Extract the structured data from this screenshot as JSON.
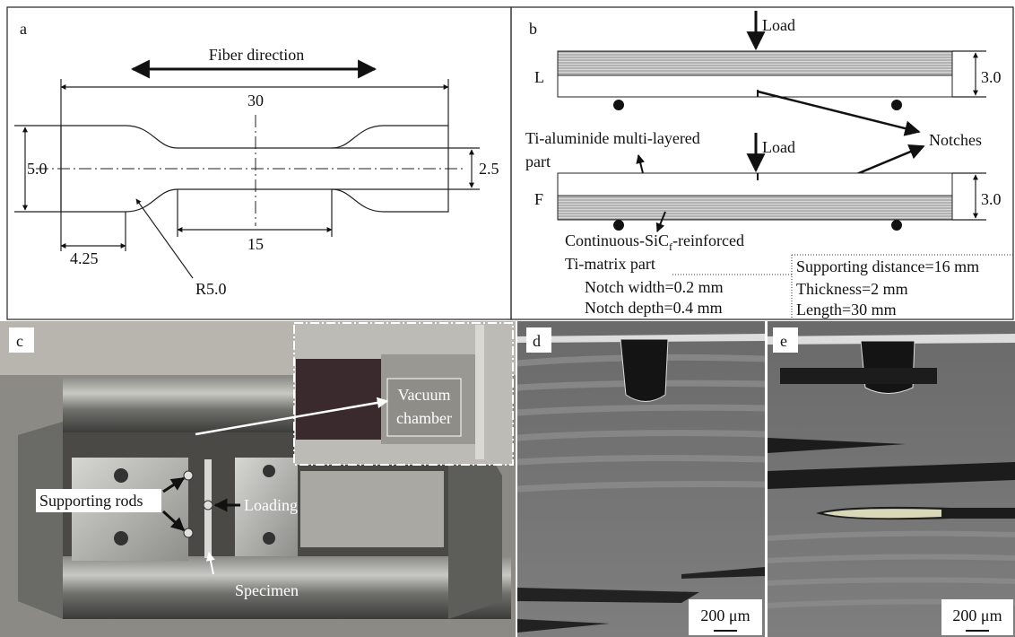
{
  "panel_a": {
    "label": "a",
    "fiber_direction": "Fiber direction",
    "dim_length": "30",
    "dim_width": "5.0",
    "dim_gauge_width": "2.5",
    "dim_grip": "4.25",
    "dim_gauge_length": "15",
    "radius": "R5.0"
  },
  "panel_b": {
    "label": "b",
    "load_top": "Load",
    "row_l": "L",
    "thickness_l": "3.0",
    "notches": "Notches",
    "ti_aluminide": [
      "Ti-aluminide multi-layered",
      "part"
    ],
    "load_bottom": "Load",
    "row_f": "F",
    "thickness_f": "3.0",
    "sic_reinforced": {
      "before": "Continuous-SiC",
      "subscript": "f",
      "after": "-reinforced"
    },
    "ti_matrix": "Ti-matrix part",
    "notch_width": "Notch width=0.2 mm",
    "notch_depth": "Notch depth=0.4 mm",
    "supporting_distance": "Supporting distance=16 mm",
    "thickness": "Thickness=2 mm",
    "length": "Length=30 mm"
  },
  "panel_c": {
    "label": "c",
    "vacuum_chamber": [
      "Vacuum",
      "chamber"
    ],
    "supporting_rods": "Supporting rods",
    "loading": "Loading",
    "specimen": "Specimen"
  },
  "panel_d": {
    "label": "d",
    "scale_bar": "200 μm"
  },
  "panel_e": {
    "label": "e",
    "scale_bar": "200 μm"
  }
}
